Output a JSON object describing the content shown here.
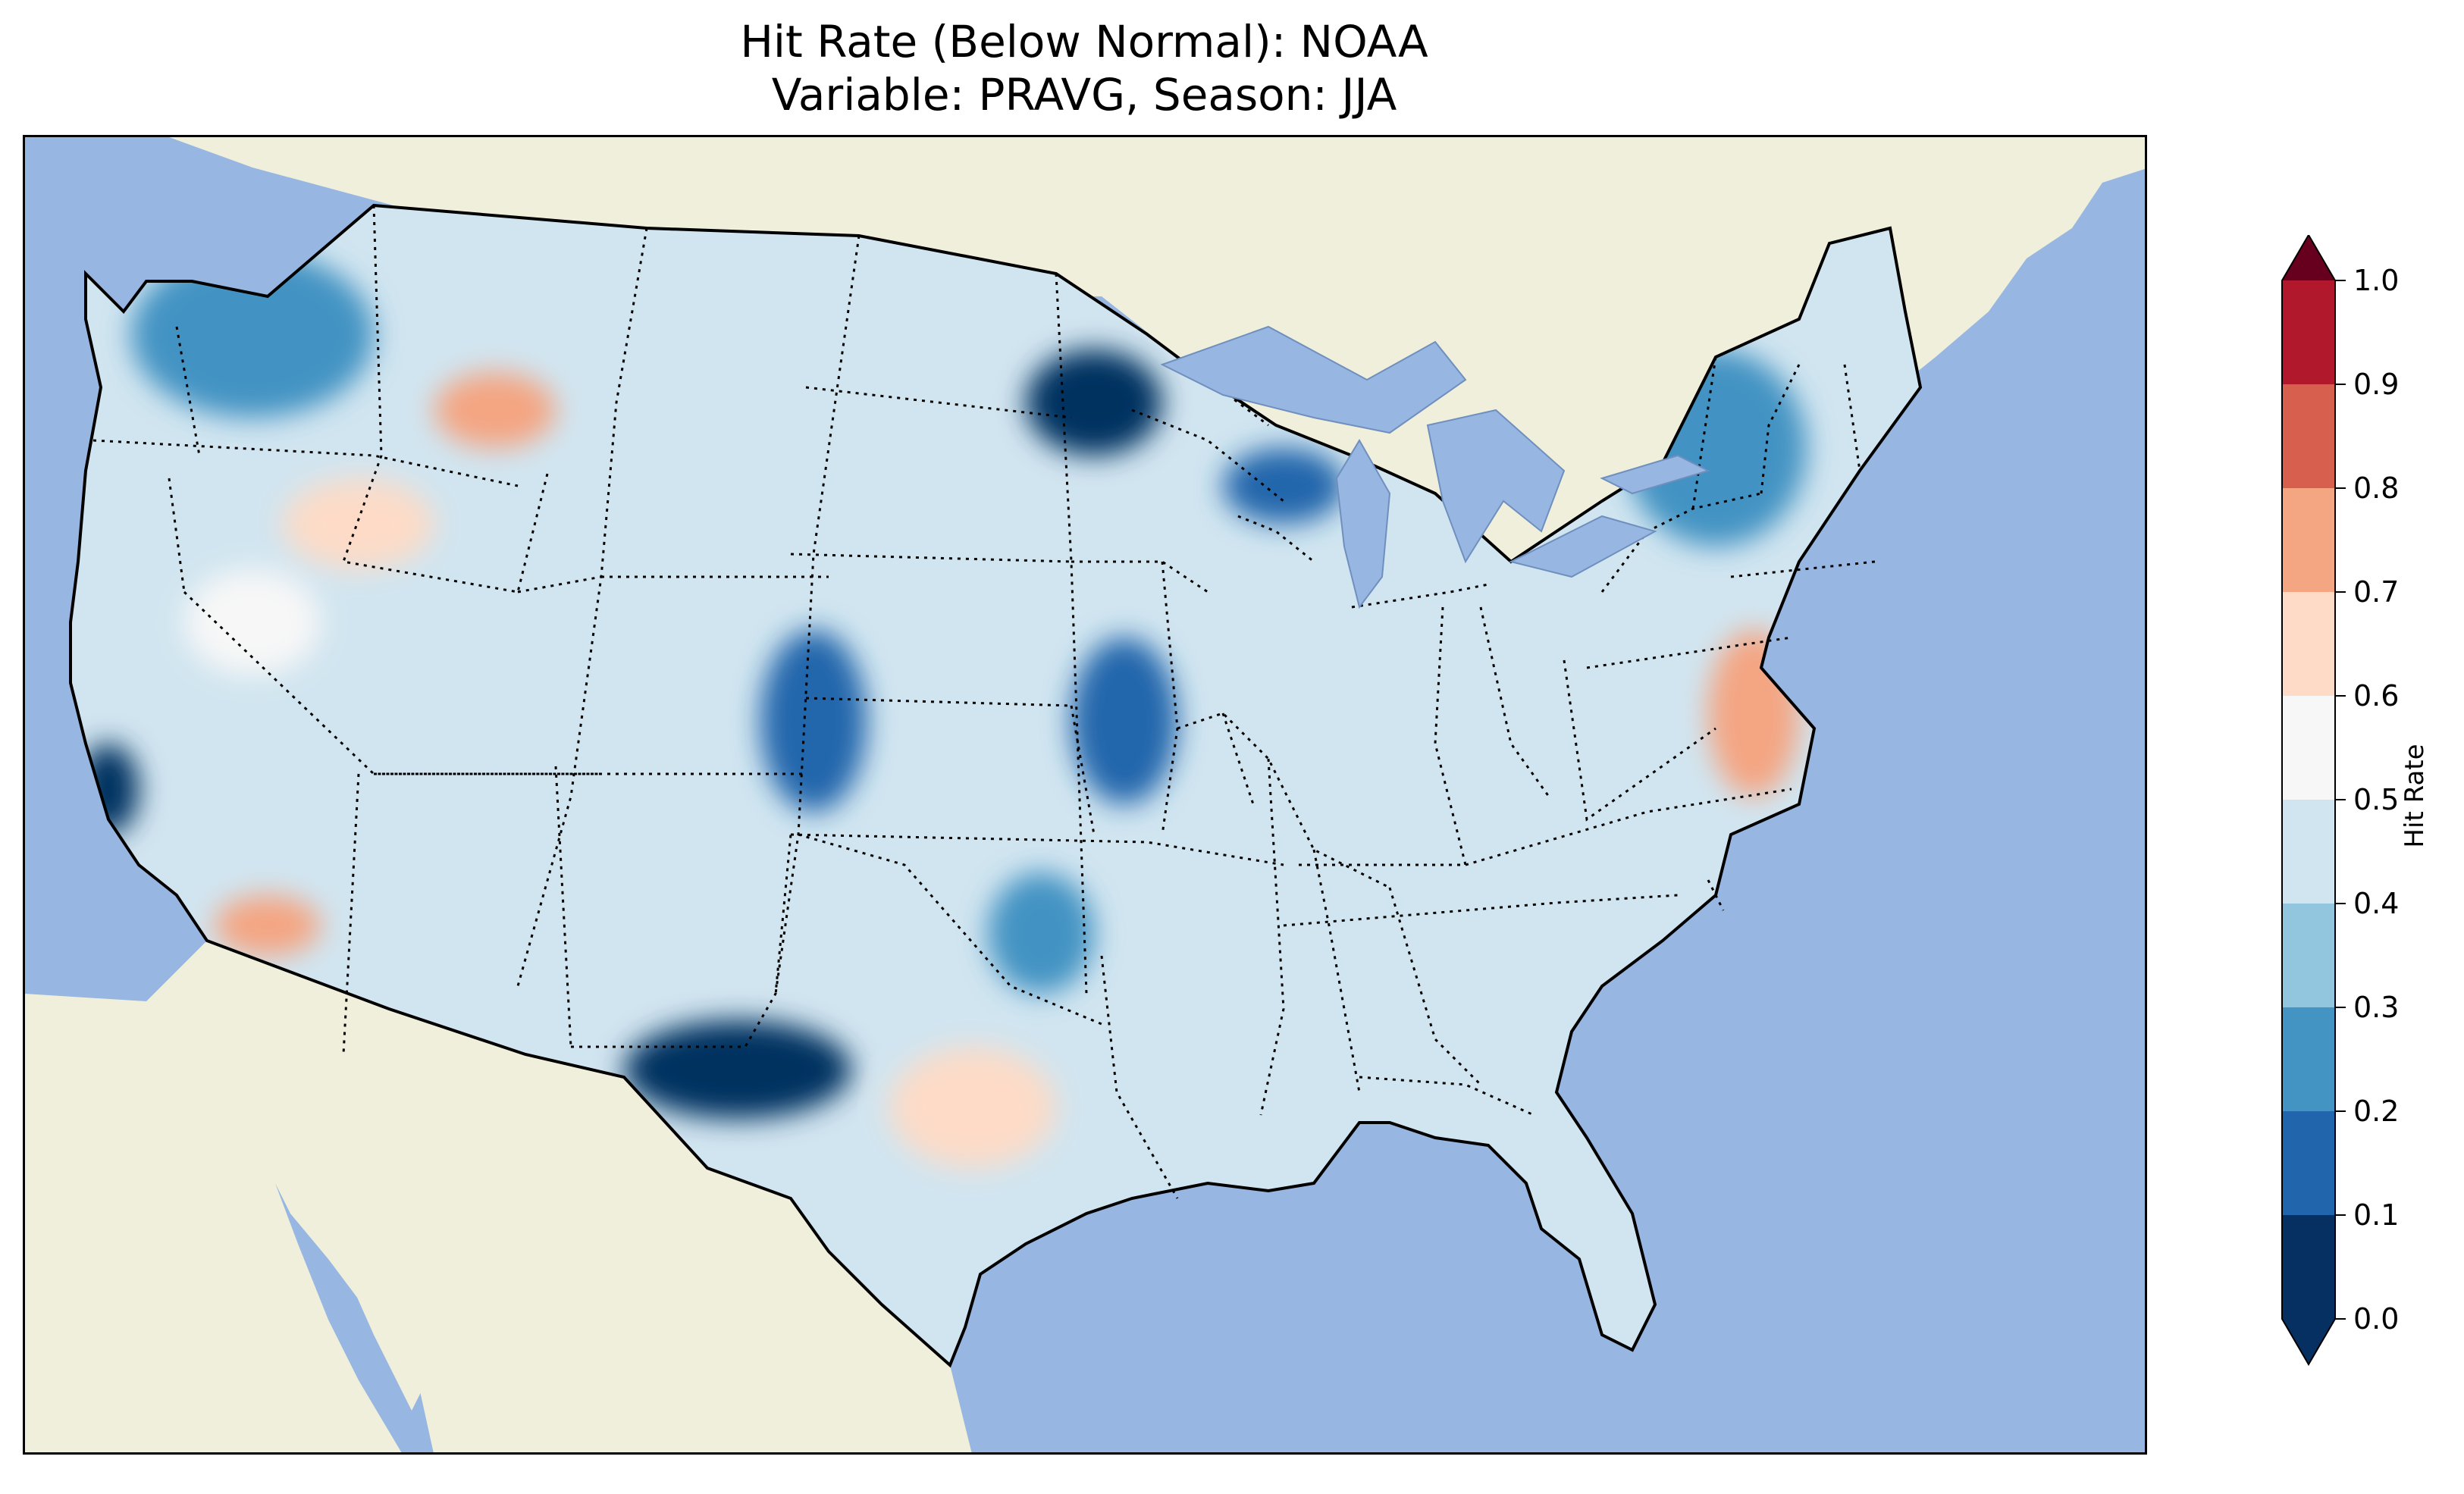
{
  "figure": {
    "title_line1": "Hit Rate (Below Normal): NOAA",
    "title_line2": "Variable: PRAVG, Season: JJA"
  },
  "colorbar": {
    "label": "Hit Rate",
    "ticks": [
      "0.0",
      "0.1",
      "0.2",
      "0.3",
      "0.4",
      "0.5",
      "0.6",
      "0.7",
      "0.8",
      "0.9",
      "1.0"
    ],
    "colors": [
      "#053061",
      "#2166ac",
      "#4393c3",
      "#92c5de",
      "#d1e5f0",
      "#f7f7f7",
      "#fddbc7",
      "#f4a582",
      "#d6604d",
      "#b2182b",
      "#67001f"
    ],
    "extend": "both"
  },
  "map": {
    "ocean_color": "#97b6e1",
    "land_color": "#efefdb",
    "region": "Contiguous United States",
    "field_description": "Gridded hit rate of below-normal precipitation forecasts",
    "blob_values": [
      {
        "name": "south-texas-low",
        "value": 0.05
      },
      {
        "name": "north-minnesota-low",
        "value": 0.05
      },
      {
        "name": "upper-michigan-low",
        "value": 0.12
      },
      {
        "name": "east-colorado-low",
        "value": 0.15
      },
      {
        "name": "south-california-coast-low",
        "value": 0.08
      },
      {
        "name": "kansas-low",
        "value": 0.18
      },
      {
        "name": "oklahoma-low",
        "value": 0.2
      },
      {
        "name": "new-england-low",
        "value": 0.22
      },
      {
        "name": "washington-low",
        "value": 0.25
      },
      {
        "name": "west-texas-high",
        "value": 0.65
      },
      {
        "name": "southern-california-high",
        "value": 0.72
      },
      {
        "name": "montana-high",
        "value": 0.72
      },
      {
        "name": "idaho-high",
        "value": 0.65
      },
      {
        "name": "virginia-high",
        "value": 0.7
      },
      {
        "name": "nevada-high",
        "value": 0.58
      }
    ]
  }
}
